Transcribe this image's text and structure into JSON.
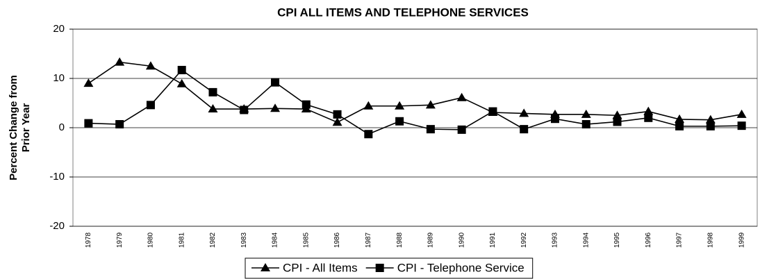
{
  "chart_data": {
    "type": "line",
    "title": "CPI ALL ITEMS AND TELEPHONE SERVICES",
    "ylabel": [
      "Percent Change from",
      "Prior Year"
    ],
    "categories": [
      "1978",
      "1979",
      "1980",
      "1981",
      "1982",
      "1983",
      "1984",
      "1985",
      "1986",
      "1987",
      "1988",
      "1989",
      "1990",
      "1991",
      "1992",
      "1993",
      "1994",
      "1995",
      "1996",
      "1997",
      "1998",
      "1999"
    ],
    "series": [
      {
        "name": "CPI - All Items",
        "color": "#000000",
        "marker": "triangle",
        "values": [
          9.0,
          13.3,
          12.5,
          8.9,
          3.8,
          3.8,
          3.9,
          3.8,
          1.1,
          4.4,
          4.4,
          4.6,
          6.1,
          3.1,
          2.9,
          2.7,
          2.7,
          2.5,
          3.3,
          1.7,
          1.6,
          2.7
        ]
      },
      {
        "name": "CPI - Telephone Service",
        "color": "#000000",
        "marker": "square",
        "values": [
          0.9,
          0.7,
          4.6,
          11.7,
          7.2,
          3.6,
          9.2,
          4.7,
          2.7,
          -1.3,
          1.3,
          -0.3,
          -0.4,
          3.3,
          -0.3,
          1.8,
          0.7,
          1.2,
          2.0,
          0.3,
          0.3,
          0.4
        ]
      }
    ],
    "ylim": [
      -20,
      20
    ],
    "yticks": [
      -20,
      -10,
      0,
      10,
      20
    ],
    "grid": true,
    "legend": "bottom"
  }
}
